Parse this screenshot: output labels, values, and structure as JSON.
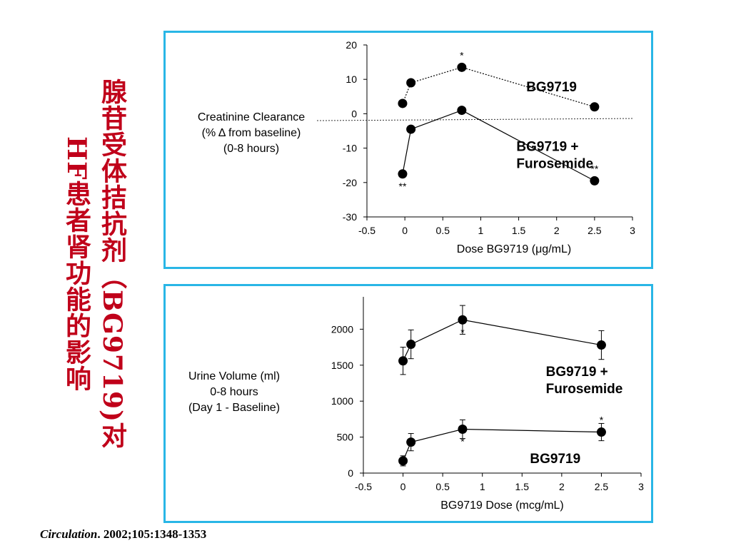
{
  "slide": {
    "title_line1": "腺苷受体拮抗剂（BG9719)对",
    "title_line2": "HF患者肾功能的影响",
    "citation_journal": "Circulation",
    "citation_rest": ". 2002;105:1348-1353",
    "colors": {
      "title": "#c0001a",
      "panel_border": "#29b6e6",
      "marker": "#000000"
    }
  },
  "chart_data": [
    {
      "type": "line",
      "ylabel_lines": [
        "Creatinine Clearance",
        "(% Δ  from baseline)",
        "(0-8 hours)"
      ],
      "xlabel": "Dose BG9719 (μg/mL)",
      "xlim": [
        -0.5,
        3
      ],
      "ylim": [
        -30,
        20
      ],
      "x_ticks": [
        "-0.5",
        "0",
        "0.5",
        "1",
        "1.5",
        "2",
        "2.5",
        "3"
      ],
      "y_ticks": [
        "20",
        "10",
        "0",
        "-10",
        "-20",
        "-30"
      ],
      "baseline": -2,
      "series": [
        {
          "name": "BG9719",
          "line": "dotted",
          "x": [
            -0.03,
            0.08,
            0.75,
            2.5
          ],
          "y": [
            3,
            9,
            13.5,
            2
          ],
          "marks": [
            "",
            "",
            "*",
            ""
          ]
        },
        {
          "name": "BG9719 + Furosemide",
          "line": "solid",
          "x": [
            -0.03,
            0.08,
            0.75,
            2.5
          ],
          "y": [
            -17.5,
            -4.5,
            1,
            -19.5
          ],
          "marks": [
            "**",
            "",
            "",
            "**"
          ]
        }
      ],
      "series_labels": [
        {
          "lines": [
            "BG9719"
          ],
          "x": 1.6,
          "y": 6.5
        },
        {
          "lines": [
            "BG9719 +",
            "Furosemide"
          ],
          "x": 1.47,
          "y": -10.8
        }
      ]
    },
    {
      "type": "line",
      "ylabel_lines": [
        "Urine Volume (ml)",
        "0-8 hours",
        "(Day 1 - Baseline)"
      ],
      "xlabel": "BG9719 Dose (mcg/mL)",
      "xlim": [
        -0.5,
        3
      ],
      "ylim": [
        0,
        2450
      ],
      "x_ticks": [
        "-0.5",
        "0",
        "0.5",
        "1",
        "1.5",
        "2",
        "2.5",
        "3"
      ],
      "y_ticks": [
        "2000",
        "1500",
        "1000",
        "500",
        "0"
      ],
      "y_tick_values": [
        2000,
        1500,
        1000,
        500,
        0
      ],
      "series": [
        {
          "name": "BG9719 + Furosemide",
          "line": "solid",
          "x": [
            0,
            0.1,
            0.75,
            2.5
          ],
          "y": [
            1560,
            1790,
            2130,
            1780
          ],
          "err": [
            190,
            200,
            200,
            200
          ],
          "marks": [
            "",
            "",
            "*",
            ""
          ]
        },
        {
          "name": "BG9719",
          "line": "solid",
          "x": [
            0,
            0.1,
            0.75,
            2.5
          ],
          "y": [
            170,
            430,
            610,
            570
          ],
          "err": [
            70,
            120,
            130,
            120
          ],
          "marks": [
            "",
            "",
            "*",
            "*"
          ]
        }
      ],
      "series_labels": [
        {
          "lines": [
            "BG9719 +",
            "Furosemide"
          ],
          "x": 1.8,
          "y": 1350
        },
        {
          "lines": [
            "BG9719"
          ],
          "x": 1.6,
          "y": 140
        }
      ]
    }
  ]
}
